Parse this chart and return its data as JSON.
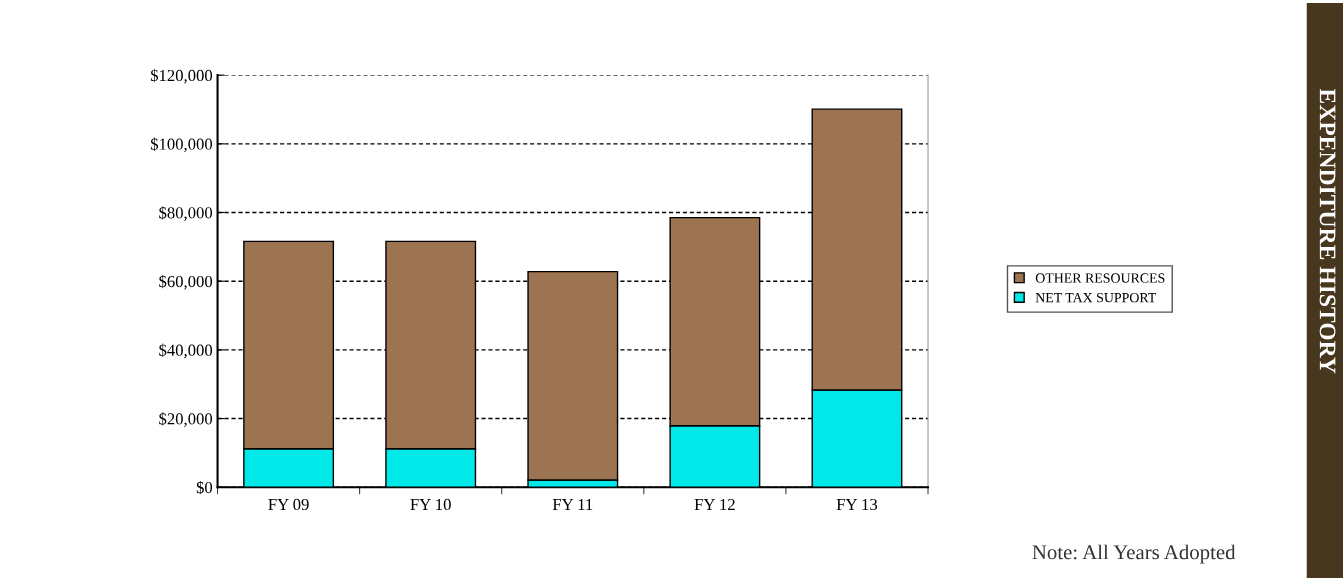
{
  "chart_data": {
    "type": "bar",
    "stacked": true,
    "categories": [
      "FY 09",
      "FY 10",
      "FY 11",
      "FY 12",
      "FY 13"
    ],
    "series": [
      {
        "name": "NET TAX SUPPORT",
        "color": "#00e8e8",
        "values": [
          11200,
          11200,
          2100,
          17900,
          28300
        ]
      },
      {
        "name": "OTHER RESOURCES",
        "color": "#9c7452",
        "values": [
          60400,
          60400,
          60700,
          60600,
          81800
        ]
      }
    ],
    "ylim": [
      0,
      120000
    ],
    "yticks": [
      {
        "value": 0,
        "label": "$0"
      },
      {
        "value": 20000,
        "label": "$20,000"
      },
      {
        "value": 40000,
        "label": "$40,000"
      },
      {
        "value": 60000,
        "label": "$60,000"
      },
      {
        "value": 80000,
        "label": "$80,000"
      },
      {
        "value": 100000,
        "label": "$100,000"
      },
      {
        "value": 120000,
        "label": "$120,000"
      }
    ],
    "grid": "y",
    "legend": "right",
    "annotations": [
      "Note: All Years Adopted",
      "EXPENDITURE HISTORY"
    ]
  }
}
